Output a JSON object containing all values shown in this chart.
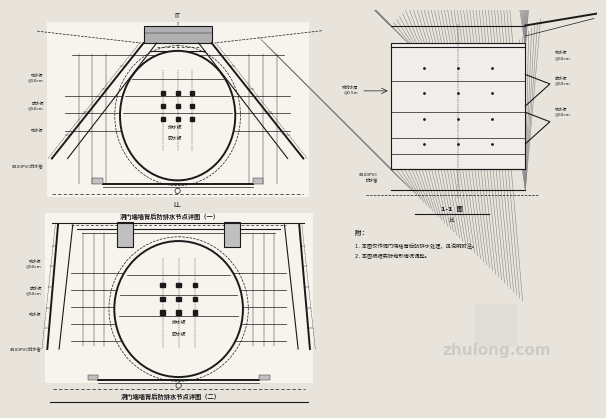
{
  "bg_color": "#e8e4dc",
  "paper_color": "#f5f2ec",
  "line_color": "#1a1a1a",
  "gray_color": "#666666",
  "title1": "洞门端墙背后防排水节点详图（一）",
  "title2": "洞门端墙背后防排水节点详图（二）",
  "label_it": "IT",
  "label_ll": "LL",
  "label_11": "1-1  图",
  "label_bi": "比",
  "note_title": "附：",
  "note1": "1. 本图仅作洞门端墙背后防排水处理，见说明附注。",
  "note2": "2. 本图根据实际地形情况调整。",
  "ann_left1a": "疏水板@50cm",
  "ann_left1b": "防水板@50cm",
  "ann_left2": "疏水板",
  "ann_left3": "防水板@50cm",
  "ann_drain": "Φ100PVC排水管",
  "watermark": "zhulong.com"
}
